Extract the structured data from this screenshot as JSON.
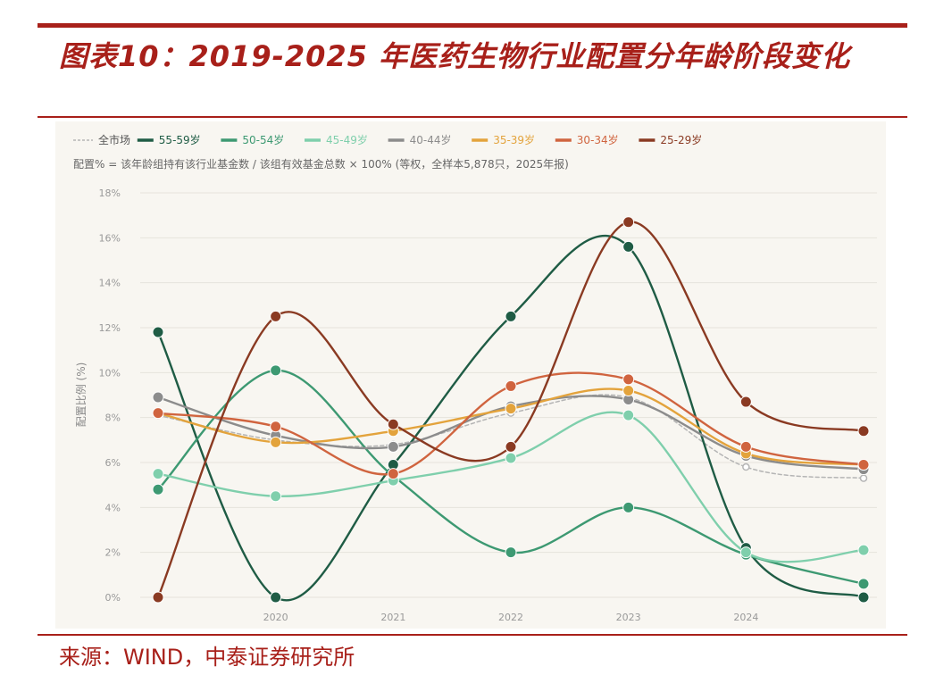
{
  "header": {
    "title": "图表10：2019-2025 年医药生物行业配置分年龄阶段变化"
  },
  "footer": {
    "source": "来源：WIND，中泰证券研究所"
  },
  "colors": {
    "accent": "#a8201a",
    "panel_bg": "#f8f6f1"
  },
  "chart_data": {
    "type": "line",
    "subtitle": "配置% = 该年龄组持有该行业基金数 / 该组有效基金总数 × 100% (等权，全样本5,878只，2025年报)",
    "xlabel": "",
    "ylabel": "配置比例 (%)",
    "x": [
      2019,
      2020,
      2021,
      2022,
      2023,
      2024,
      2025
    ],
    "xticks": [
      2020,
      2021,
      2022,
      2023,
      2024
    ],
    "xlim": [
      2019,
      2025
    ],
    "ylim": [
      0,
      18
    ],
    "yticks": [
      0,
      2,
      4,
      6,
      8,
      10,
      12,
      14,
      16,
      18
    ],
    "ytick_labels": [
      "0%",
      "2%",
      "4%",
      "6%",
      "8%",
      "10%",
      "12%",
      "14%",
      "16%",
      "18%"
    ],
    "grid": "horizontal",
    "legend_position": "top-left",
    "series": [
      {
        "name": "全市场",
        "color": "#b5b5b5",
        "dashed": true,
        "values": [
          8.1,
          7.0,
          6.8,
          8.2,
          8.9,
          5.8,
          5.3
        ]
      },
      {
        "name": "55-59岁",
        "color": "#1f5c45",
        "dashed": false,
        "values": [
          11.8,
          0.0,
          5.9,
          12.5,
          15.6,
          2.2,
          0.0
        ]
      },
      {
        "name": "50-54岁",
        "color": "#3d9972",
        "dashed": false,
        "values": [
          4.8,
          10.1,
          5.4,
          2.0,
          4.0,
          1.9,
          0.6
        ]
      },
      {
        "name": "45-49岁",
        "color": "#7fcfac",
        "dashed": false,
        "values": [
          5.5,
          4.5,
          5.2,
          6.2,
          8.1,
          2.0,
          2.1
        ]
      },
      {
        "name": "40-44岁",
        "color": "#8c8c8c",
        "dashed": false,
        "values": [
          8.9,
          7.2,
          6.7,
          8.5,
          8.8,
          6.3,
          5.7
        ]
      },
      {
        "name": "35-39岁",
        "color": "#e3a33c",
        "dashed": false,
        "values": [
          8.2,
          6.9,
          7.4,
          8.4,
          9.2,
          6.4,
          5.9
        ]
      },
      {
        "name": "30-34岁",
        "color": "#d0643f",
        "dashed": false,
        "values": [
          8.2,
          7.6,
          5.5,
          9.4,
          9.7,
          6.7,
          5.9
        ]
      },
      {
        "name": "25-29岁",
        "color": "#8a3a22",
        "dashed": false,
        "values": [
          0.0,
          12.5,
          7.7,
          6.7,
          16.7,
          8.7,
          7.4
        ]
      }
    ]
  }
}
